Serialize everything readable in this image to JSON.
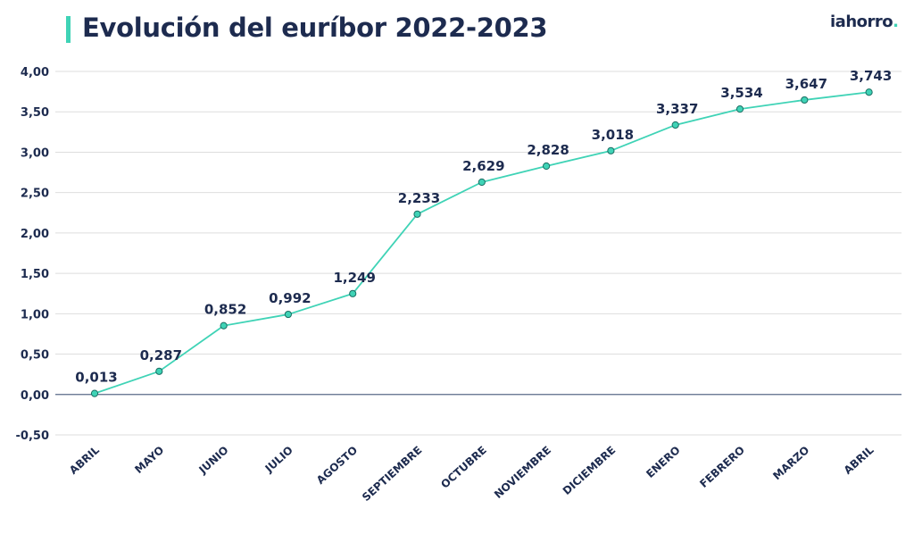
{
  "header": {
    "title": "Evolución del euríbor 2022-2023",
    "logo_text": "iahorro",
    "logo_dot": "."
  },
  "colors": {
    "navy": "#1d2b4f",
    "teal": "#3fd3b6",
    "grid": "#dedede",
    "zero_line": "#5a6a88"
  },
  "chart_data": {
    "type": "line",
    "title": "Evolución del euríbor 2022-2023",
    "xlabel": "",
    "ylabel": "",
    "categories": [
      "ABRIL",
      "MAYO",
      "JUNIO",
      "JULIO",
      "AGOSTO",
      "SEPTIEMBRE",
      "OCTUBRE",
      "NOVIEMBRE",
      "DICIEMBRE",
      "ENERO",
      "FEBRERO",
      "MARZO",
      "ABRIL"
    ],
    "values": [
      0.013,
      0.287,
      0.852,
      0.992,
      1.249,
      2.233,
      2.629,
      2.828,
      3.018,
      3.337,
      3.534,
      3.647,
      3.743
    ],
    "data_labels": [
      "0,013",
      "0,287",
      "0,852",
      "0,992",
      "1,249",
      "2,233",
      "2,629",
      "2,828",
      "3,018",
      "3,337",
      "3,534",
      "3,647",
      "3,743"
    ],
    "ylim": [
      -0.5,
      4.0
    ],
    "yticks": [
      -0.5,
      0,
      0.5,
      1.0,
      1.5,
      2.0,
      2.5,
      3.0,
      3.5,
      4.0
    ],
    "ytick_labels": [
      "-0,50",
      "0,00",
      "0,50",
      "1,00",
      "1,50",
      "2,00",
      "2,50",
      "3,00",
      "3,50",
      "4,00"
    ],
    "grid": true,
    "legend": "none"
  }
}
